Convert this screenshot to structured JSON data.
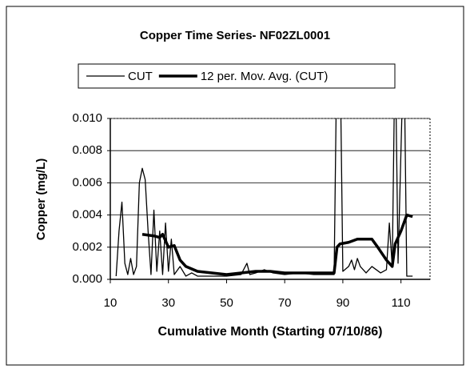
{
  "chart_data": {
    "type": "line",
    "title": "Copper Time Series- NF02ZL0001",
    "x_label": "Cumulative Month (Starting 07/10/86)",
    "y_label": "Copper (mg/L)",
    "xlim": [
      10,
      120
    ],
    "xticks": [
      10,
      30,
      50,
      70,
      90,
      110
    ],
    "ylim": [
      0,
      0.01
    ],
    "yticks": [
      {
        "value": 0,
        "label": "0.000"
      },
      {
        "value": 0.002,
        "label": "0.002"
      },
      {
        "value": 0.004,
        "label": "0.004"
      },
      {
        "value": 0.006,
        "label": "0.006"
      },
      {
        "value": 0.008,
        "label": "0.008"
      },
      {
        "value": 0.01,
        "label": "0.010"
      }
    ],
    "grid": true,
    "legend": "top",
    "series": [
      {
        "name": "CUT",
        "color": "#000000",
        "width": 1.3,
        "x": [
          12,
          13,
          14,
          15,
          16,
          17,
          18,
          19,
          20,
          21,
          22,
          23,
          24,
          25,
          26,
          27,
          28,
          29,
          30,
          31,
          32,
          34,
          36,
          38,
          40,
          45,
          50,
          55,
          57,
          58,
          60,
          63,
          66,
          70,
          75,
          80,
          85,
          87,
          88,
          89,
          90,
          92,
          93,
          94,
          95,
          96,
          98,
          100,
          103,
          105,
          106,
          107,
          108,
          109,
          111,
          112,
          114
        ],
        "values": [
          0.0002,
          0.003,
          0.0048,
          0.001,
          0.0003,
          0.0013,
          0.0003,
          0.0008,
          0.006,
          0.0069,
          0.0062,
          0.003,
          0.0003,
          0.0043,
          0.0005,
          0.003,
          0.0003,
          0.0035,
          0.0005,
          0.0025,
          0.0003,
          0.0008,
          0.0002,
          0.0004,
          0.0002,
          0.0002,
          0.0002,
          0.0003,
          0.001,
          0.0003,
          0.0004,
          0.0006,
          0.0004,
          0.0003,
          0.0004,
          0.0003,
          0.0003,
          0.0003,
          0.015,
          0.015,
          0.0005,
          0.0008,
          0.0012,
          0.0006,
          0.0013,
          0.0008,
          0.0004,
          0.0008,
          0.0004,
          0.0006,
          0.0035,
          0.0008,
          0.015,
          0.001,
          0.015,
          0.0002,
          0.0002
        ]
      },
      {
        "name": "12 per. Mov. Avg. (CUT)",
        "color": "#000000",
        "width": 3.5,
        "x": [
          21,
          25,
          27,
          28,
          30,
          32,
          34,
          36,
          40,
          45,
          50,
          55,
          60,
          65,
          70,
          75,
          80,
          87,
          88,
          89,
          92,
          95,
          100,
          102,
          105,
          107,
          108,
          110,
          112,
          114
        ],
        "values": [
          0.0028,
          0.0027,
          0.0026,
          0.0028,
          0.002,
          0.0021,
          0.0012,
          0.0008,
          0.0005,
          0.0004,
          0.0003,
          0.0004,
          0.0005,
          0.0005,
          0.0004,
          0.0004,
          0.0004,
          0.0004,
          0.002,
          0.0022,
          0.0023,
          0.0025,
          0.0025,
          0.002,
          0.0012,
          0.0008,
          0.0022,
          0.003,
          0.004,
          0.0039
        ]
      }
    ]
  }
}
